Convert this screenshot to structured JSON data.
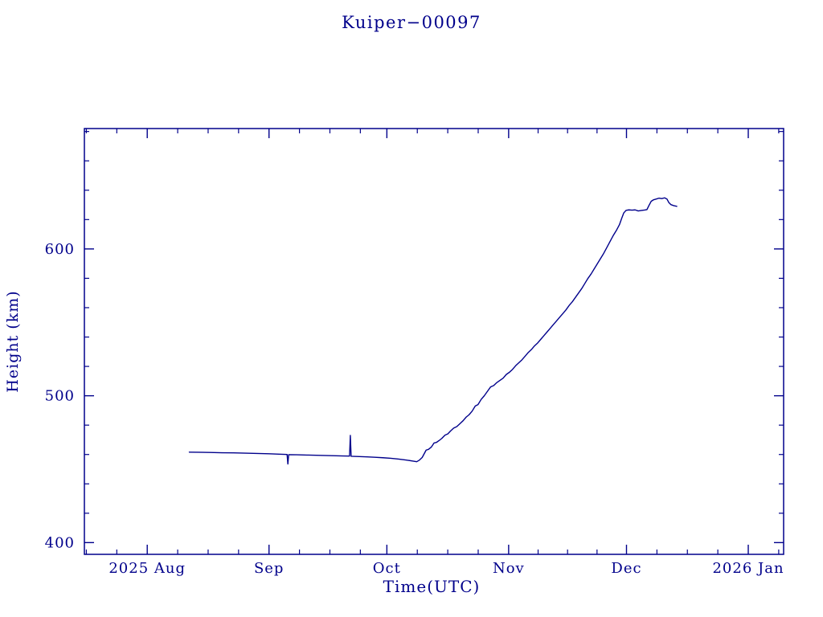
{
  "colors": {
    "foreground": "#00008B",
    "background": "#FFFFFF"
  },
  "chart_data": {
    "type": "line",
    "title": "Kuiper−00097",
    "xlabel": "Time(UTC)",
    "ylabel": "Height (km)",
    "x_unit": "days since 2025-08-01",
    "xlim": [
      -16,
      162
    ],
    "ylim": [
      392,
      682
    ],
    "x_axis": {
      "major_ticks": [
        {
          "day": 0,
          "label": "2025 Aug"
        },
        {
          "day": 31,
          "label": "Sep"
        },
        {
          "day": 61,
          "label": "Oct"
        },
        {
          "day": 92,
          "label": "Nov"
        },
        {
          "day": 122,
          "label": "Dec"
        },
        {
          "day": 153,
          "label": "2026 Jan"
        }
      ],
      "minor_ticks": [
        -15.5,
        -7.75,
        7.75,
        15.5,
        23.25,
        38.75,
        46.5,
        54.25,
        68.75,
        76.5,
        84.25,
        99.5,
        107,
        114.5,
        129.75,
        137.5,
        145.25,
        160.75
      ]
    },
    "y_axis": {
      "major_ticks": [
        {
          "value": 400,
          "label": "400"
        },
        {
          "value": 500,
          "label": "500"
        },
        {
          "value": 600,
          "label": "600"
        }
      ],
      "minor_ticks": [
        420,
        440,
        460,
        480,
        520,
        540,
        560,
        580,
        620,
        640,
        660,
        680
      ]
    },
    "series": [
      {
        "name": "height",
        "color": "#00008B",
        "points": [
          [
            10.7,
            461.6
          ],
          [
            13,
            461.5
          ],
          [
            16,
            461.4
          ],
          [
            19,
            461.2
          ],
          [
            22,
            461.1
          ],
          [
            25,
            460.9
          ],
          [
            28,
            460.7
          ],
          [
            31,
            460.5
          ],
          [
            33.5,
            460.2
          ],
          [
            35.6,
            460.0
          ],
          [
            35.8,
            453.5
          ],
          [
            36.0,
            459.9
          ],
          [
            38,
            459.8
          ],
          [
            41,
            459.6
          ],
          [
            44,
            459.4
          ],
          [
            47,
            459.2
          ],
          [
            50,
            459.0
          ],
          [
            51.5,
            458.9
          ],
          [
            51.7,
            473.0
          ],
          [
            51.9,
            458.8
          ],
          [
            54,
            458.6
          ],
          [
            56,
            458.4
          ],
          [
            58,
            458.1
          ],
          [
            60,
            457.8
          ],
          [
            62,
            457.4
          ],
          [
            64,
            456.9
          ],
          [
            66,
            456.2
          ],
          [
            67.5,
            455.6
          ],
          [
            68.6,
            455.1
          ],
          [
            69.3,
            456.2
          ],
          [
            70,
            458.0
          ],
          [
            71,
            463.0
          ],
          [
            71.6,
            463.5
          ],
          [
            72.3,
            465.0
          ],
          [
            73,
            467.8
          ],
          [
            73.6,
            468.2
          ],
          [
            74.3,
            469.5
          ],
          [
            75,
            471.0
          ],
          [
            75.8,
            473.2
          ],
          [
            76.5,
            474.0
          ],
          [
            77.2,
            476.0
          ],
          [
            78,
            478.0
          ],
          [
            78.8,
            479.0
          ],
          [
            79.6,
            481.0
          ],
          [
            80.4,
            483.0
          ],
          [
            81.2,
            485.5
          ],
          [
            81.9,
            487.0
          ],
          [
            82.7,
            489.5
          ],
          [
            83.5,
            493.0
          ],
          [
            84.2,
            494.0
          ],
          [
            85.0,
            497.5
          ],
          [
            85.8,
            500.0
          ],
          [
            86.6,
            503.0
          ],
          [
            87.4,
            506.0
          ],
          [
            88.2,
            507.0
          ],
          [
            89.0,
            509.0
          ],
          [
            89.8,
            510.5
          ],
          [
            90.6,
            512.0
          ],
          [
            91.4,
            514.5
          ],
          [
            92.2,
            516.0
          ],
          [
            93.0,
            518.0
          ],
          [
            93.8,
            520.5
          ],
          [
            94.6,
            522.5
          ],
          [
            95.4,
            524.5
          ],
          [
            96.2,
            527.0
          ],
          [
            97.0,
            529.5
          ],
          [
            97.8,
            531.5
          ],
          [
            98.6,
            534.0
          ],
          [
            99.4,
            536.0
          ],
          [
            100.2,
            538.5
          ],
          [
            101.0,
            541.0
          ],
          [
            101.8,
            543.5
          ],
          [
            102.6,
            546.0
          ],
          [
            103.4,
            548.5
          ],
          [
            104.2,
            551.0
          ],
          [
            105.0,
            553.5
          ],
          [
            105.8,
            556.0
          ],
          [
            106.6,
            558.5
          ],
          [
            107.4,
            561.5
          ],
          [
            108.2,
            564.0
          ],
          [
            109.0,
            567.0
          ],
          [
            109.8,
            570.0
          ],
          [
            110.6,
            573.0
          ],
          [
            111.4,
            576.5
          ],
          [
            112.2,
            580.0
          ],
          [
            113.0,
            583.0
          ],
          [
            113.8,
            586.5
          ],
          [
            114.6,
            590.0
          ],
          [
            115.4,
            593.5
          ],
          [
            116.2,
            597.0
          ],
          [
            117.0,
            601.0
          ],
          [
            117.8,
            605.0
          ],
          [
            118.6,
            609.0
          ],
          [
            119.4,
            612.5
          ],
          [
            120.2,
            616.5
          ],
          [
            120.8,
            621.0
          ],
          [
            121.3,
            624.5
          ],
          [
            121.9,
            626.3
          ],
          [
            122.6,
            626.6
          ],
          [
            123.4,
            626.4
          ],
          [
            124.2,
            626.6
          ],
          [
            125.0,
            625.9
          ],
          [
            125.8,
            626.2
          ],
          [
            126.6,
            626.5
          ],
          [
            127.2,
            626.8
          ],
          [
            127.7,
            629.5
          ],
          [
            128.3,
            632.5
          ],
          [
            128.9,
            633.5
          ],
          [
            129.6,
            634.0
          ],
          [
            130.3,
            634.6
          ],
          [
            131.0,
            634.3
          ],
          [
            131.7,
            634.8
          ],
          [
            132.3,
            634.0
          ],
          [
            132.8,
            631.5
          ],
          [
            133.3,
            630.2
          ],
          [
            134.0,
            629.5
          ],
          [
            134.8,
            629.0
          ]
        ]
      }
    ]
  }
}
